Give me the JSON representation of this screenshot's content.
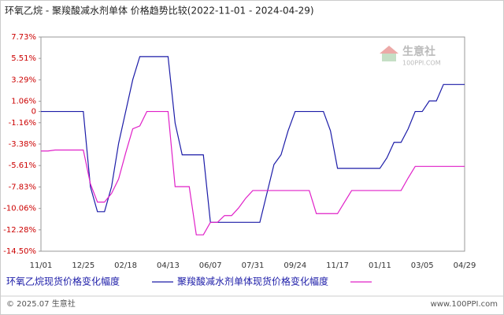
{
  "chart_data": {
    "type": "line",
    "title": "环氧乙烷 - 聚羧酸减水剂单体 价格趋势比较(2022-11-01 - 2024-04-29)",
    "categories": [
      "11/01",
      null,
      null,
      null,
      null,
      null,
      "12/25",
      null,
      null,
      null,
      null,
      null,
      "02/18",
      null,
      null,
      null,
      null,
      null,
      "04/13",
      null,
      null,
      null,
      null,
      null,
      "06/07",
      null,
      null,
      null,
      null,
      null,
      "07/31",
      null,
      null,
      null,
      null,
      null,
      "09/24",
      null,
      null,
      null,
      null,
      null,
      "11/17",
      null,
      null,
      null,
      null,
      null,
      "01/11",
      null,
      null,
      null,
      null,
      null,
      "03/05",
      null,
      null,
      null,
      null,
      null,
      "04/29"
    ],
    "series": [
      {
        "name": "环氧乙烷现货价格变化幅度",
        "color": "#1c1ca8",
        "values": [
          0,
          0,
          0,
          0,
          0,
          0,
          0,
          -7.8,
          -10.4,
          -10.4,
          -7.8,
          -3.3,
          0,
          3.3,
          5.7,
          5.7,
          5.7,
          5.7,
          5.7,
          -1.2,
          -4.5,
          -4.5,
          -4.5,
          -4.5,
          -11.5,
          -11.5,
          -11.5,
          -11.5,
          -11.5,
          -11.5,
          -11.5,
          -11.5,
          -8.5,
          -5.5,
          -4.5,
          -2,
          0,
          0,
          0,
          0,
          0,
          -2,
          -5.9,
          -5.9,
          -5.9,
          -5.9,
          -5.9,
          -5.9,
          -5.9,
          -4.8,
          -3.2,
          -3.2,
          -1.8,
          0,
          0,
          1.1,
          1.1,
          2.8,
          2.8,
          2.8,
          2.8
        ]
      },
      {
        "name": "聚羧酸减水剂单体现货价格变化幅度",
        "color": "#e020c8",
        "values": [
          -4.1,
          -4.1,
          -4.0,
          -4.0,
          -4.0,
          -4.0,
          -4.0,
          -7.5,
          -9.4,
          -9.4,
          -8.5,
          -7.0,
          -4.3,
          -1.8,
          -1.5,
          0,
          0,
          0,
          0,
          -7.8,
          -7.8,
          -7.8,
          -12.8,
          -12.8,
          -11.5,
          -11.5,
          -10.8,
          -10.8,
          -10,
          -9,
          -8.2,
          -8.2,
          -8.2,
          -8.2,
          -8.2,
          -8.2,
          -8.2,
          -8.2,
          -8.2,
          -10.6,
          -10.6,
          -10.6,
          -10.6,
          -9.4,
          -8.2,
          -8.2,
          -8.2,
          -8.2,
          -8.2,
          -8.2,
          -8.2,
          -8.2,
          -6.9,
          -5.7,
          -5.7,
          -5.7,
          -5.7,
          -5.7,
          -5.7,
          -5.7,
          -5.7
        ]
      }
    ],
    "ylim": [
      -14.5,
      7.73
    ],
    "yticks": [
      {
        "value": 7.73,
        "label": "7.73%"
      },
      {
        "value": 5.51,
        "label": "5.51%"
      },
      {
        "value": 3.29,
        "label": "3.29%"
      },
      {
        "value": 1.06,
        "label": "1.06%"
      },
      0,
      {
        "value": -1.16,
        "label": "-1.16%"
      },
      {
        "value": -3.38,
        "label": "-3.38%"
      },
      {
        "value": -5.61,
        "label": "-5.61%"
      },
      {
        "value": -7.83,
        "label": "-7.83%"
      },
      {
        "value": -10.06,
        "label": "-10.06%"
      },
      {
        "value": -12.28,
        "label": "-12.28%"
      },
      {
        "value": -14.5,
        "label": "-14.50%"
      }
    ],
    "grid": false,
    "watermark": "生意社",
    "watermark_sub": "100PPI.COM",
    "footer_left": "© 2025.07 生意社",
    "footer_right": "www.100PPI.com"
  }
}
